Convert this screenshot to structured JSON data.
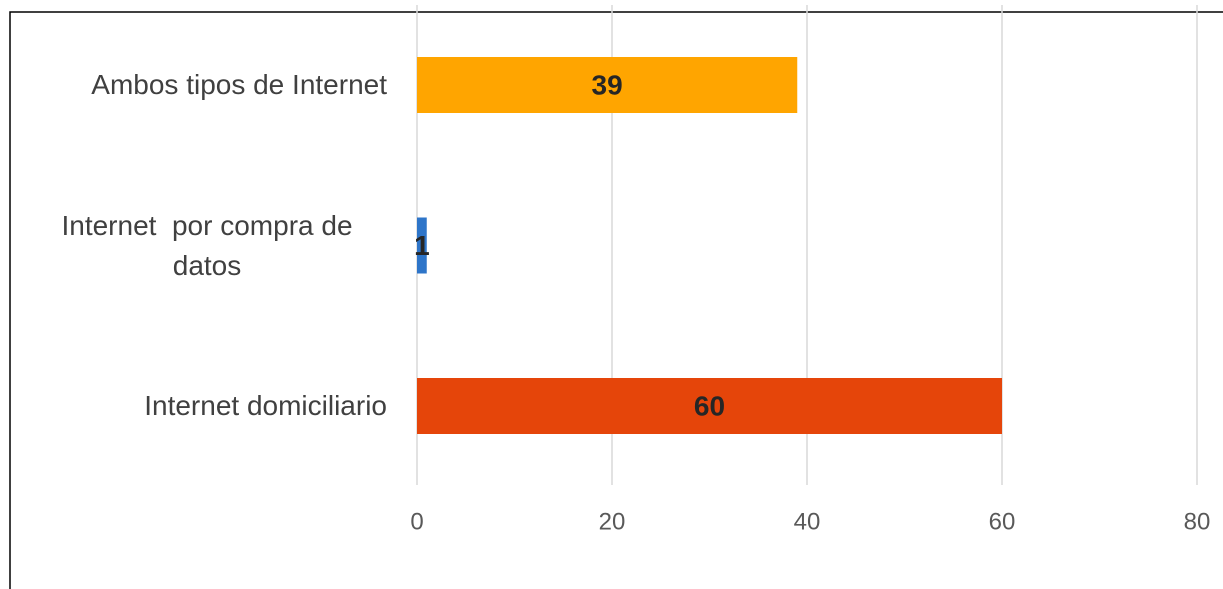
{
  "chart_data": {
    "type": "barh",
    "categories": [
      "Ambos tipos de Internet",
      "Internet  por compra de datos",
      "Internet domiciliario"
    ],
    "values": [
      39,
      1,
      60
    ],
    "colors": [
      "#ffa500",
      "#2e75c9",
      "#e5450a"
    ],
    "xlim": [
      0,
      80
    ],
    "xticks": [
      0,
      20,
      40,
      60,
      80
    ],
    "grid": true
  }
}
